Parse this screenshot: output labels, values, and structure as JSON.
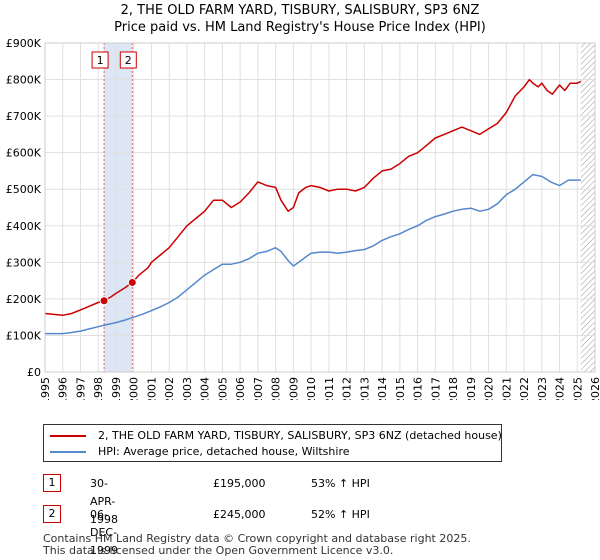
{
  "chart_data": {
    "type": "line",
    "title": "2, THE OLD FARM YARD, TISBURY, SALISBURY, SP3 6NZ",
    "subtitle": "Price paid vs. HM Land Registry's House Price Index (HPI)",
    "xlabel": "",
    "ylabel": "",
    "xlim": [
      1995,
      2026
    ],
    "ylim": [
      0,
      900000
    ],
    "x_ticks": [
      1995,
      1996,
      1997,
      1998,
      1999,
      2000,
      2001,
      2002,
      2003,
      2004,
      2005,
      2006,
      2007,
      2008,
      2009,
      2010,
      2011,
      2012,
      2013,
      2014,
      2015,
      2016,
      2017,
      2018,
      2019,
      2020,
      2021,
      2022,
      2023,
      2024,
      2025,
      2026
    ],
    "x_tick_labels": [
      "1995",
      "1996",
      "1997",
      "1998",
      "1999",
      "2000",
      "2001",
      "2002",
      "2003",
      "2004",
      "2005",
      "2006",
      "2007",
      "2008",
      "2009",
      "2010",
      "2011",
      "2012",
      "2013",
      "2014",
      "2015",
      "2016",
      "2017",
      "2018",
      "2019",
      "2020",
      "2021",
      "2022",
      "2023",
      "2024",
      "2025",
      "2026"
    ],
    "y_ticks": [
      0,
      100000,
      200000,
      300000,
      400000,
      500000,
      600000,
      700000,
      800000,
      900000
    ],
    "y_tick_labels": [
      "£0",
      "£100K",
      "£200K",
      "£300K",
      "£400K",
      "£500K",
      "£600K",
      "£700K",
      "£800K",
      "£900K"
    ],
    "grid": true,
    "series": [
      {
        "name": "2, THE OLD FARM YARD, TISBURY, SALISBURY, SP3 6NZ (detached house)",
        "color": "#cc0000",
        "x": [
          1995,
          1996,
          1996.5,
          1997,
          1997.5,
          1998,
          1998.33,
          1998.7,
          1999,
          1999.5,
          1999.92,
          2000.3,
          2000.8,
          2001,
          2001.5,
          2002,
          2002.5,
          2003,
          2003.5,
          2004,
          2004.5,
          2005,
          2005.5,
          2006,
          2006.5,
          2007,
          2007.5,
          2008,
          2008.3,
          2008.7,
          2009,
          2009.3,
          2009.7,
          2010,
          2010.5,
          2011,
          2011.5,
          2012,
          2012.5,
          2013,
          2013.5,
          2014,
          2014.5,
          2015,
          2015.5,
          2016,
          2016.5,
          2017,
          2017.5,
          2018,
          2018.5,
          2019,
          2019.5,
          2020,
          2020.5,
          2021,
          2021.5,
          2022,
          2022.3,
          2022.5,
          2022.8,
          2023,
          2023.3,
          2023.6,
          2024,
          2024.3,
          2024.6,
          2025,
          2025.2
        ],
        "y": [
          160000,
          155000,
          160000,
          170000,
          180000,
          190000,
          195000,
          205000,
          215000,
          230000,
          245000,
          265000,
          285000,
          300000,
          320000,
          340000,
          370000,
          400000,
          420000,
          440000,
          470000,
          470000,
          450000,
          465000,
          490000,
          520000,
          510000,
          505000,
          470000,
          440000,
          450000,
          490000,
          505000,
          510000,
          505000,
          495000,
          500000,
          500000,
          495000,
          505000,
          530000,
          550000,
          555000,
          570000,
          590000,
          600000,
          620000,
          640000,
          650000,
          660000,
          670000,
          660000,
          650000,
          665000,
          680000,
          710000,
          755000,
          780000,
          800000,
          790000,
          780000,
          790000,
          770000,
          760000,
          785000,
          770000,
          790000,
          790000,
          795000
        ]
      },
      {
        "name": "HPI: Average price, detached house, Wiltshire",
        "color": "#5588cc",
        "x": [
          1995,
          1996,
          1996.5,
          1997,
          1997.5,
          1998,
          1998.5,
          1999,
          1999.5,
          2000,
          2000.5,
          2001,
          2001.5,
          2002,
          2002.5,
          2003,
          2003.5,
          2004,
          2004.5,
          2005,
          2005.5,
          2006,
          2006.5,
          2007,
          2007.5,
          2008,
          2008.3,
          2008.7,
          2009,
          2009.3,
          2009.7,
          2010,
          2010.5,
          2011,
          2011.5,
          2012,
          2012.5,
          2013,
          2013.5,
          2014,
          2014.5,
          2015,
          2015.5,
          2016,
          2016.5,
          2017,
          2017.5,
          2018,
          2018.5,
          2019,
          2019.5,
          2020,
          2020.5,
          2021,
          2021.5,
          2022,
          2022.5,
          2023,
          2023.5,
          2024,
          2024.5,
          2025,
          2025.2
        ],
        "y": [
          105000,
          105000,
          108000,
          112000,
          118000,
          124000,
          130000,
          135000,
          142000,
          150000,
          158000,
          168000,
          178000,
          190000,
          205000,
          225000,
          245000,
          265000,
          280000,
          295000,
          295000,
          300000,
          310000,
          325000,
          330000,
          340000,
          330000,
          305000,
          290000,
          300000,
          315000,
          325000,
          328000,
          328000,
          325000,
          328000,
          332000,
          335000,
          345000,
          360000,
          370000,
          378000,
          390000,
          400000,
          415000,
          425000,
          432000,
          440000,
          445000,
          448000,
          440000,
          445000,
          460000,
          485000,
          500000,
          520000,
          540000,
          535000,
          520000,
          510000,
          525000,
          525000,
          525000
        ]
      }
    ],
    "markers": [
      {
        "label": "1",
        "x": 1998.33,
        "y": 195000
      },
      {
        "label": "2",
        "x": 1999.92,
        "y": 245000
      }
    ],
    "shaded_span": {
      "from": 1998.33,
      "to": 1999.92,
      "color": "#dde6f5"
    },
    "hatched_from": 2025.2,
    "annotations": [
      "1",
      "2"
    ]
  },
  "legend": {
    "series1_label": "2, THE OLD FARM YARD, TISBURY, SALISBURY, SP3 6NZ (detached house)",
    "series2_label": "HPI: Average price, detached house, Wiltshire",
    "series1_color": "#cc0000",
    "series2_color": "#5588cc"
  },
  "transactions": [
    {
      "num": "1",
      "date": "30-APR-1998",
      "price": "£195,000",
      "hpi": "53% ↑ HPI"
    },
    {
      "num": "2",
      "date": "06-DEC-1999",
      "price": "£245,000",
      "hpi": "52% ↑ HPI"
    }
  ],
  "footer": {
    "line1": "Contains HM Land Registry data © Crown copyright and database right 2025.",
    "line2": "This data is licensed under the Open Government Licence v3.0."
  }
}
